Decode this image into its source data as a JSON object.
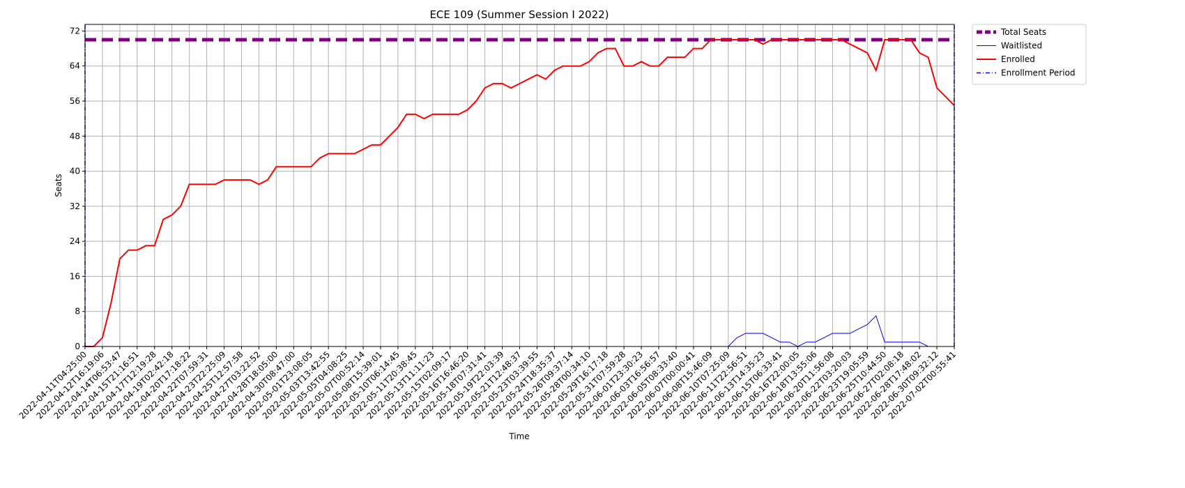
{
  "chart_data": {
    "type": "line",
    "title": "ECE 109 (Summer Session I 2022)",
    "x_label": "Time",
    "y_label": "Seats",
    "categories": [
      "2022-04-11T04:25:00",
      null,
      "2022-04-12T16:19:06",
      null,
      "2022-04-14T06:53:47",
      null,
      "2022-04-15T21:16:51",
      null,
      "2022-04-17T12:19:28",
      null,
      "2022-04-19T02:42:18",
      null,
      "2022-04-20T17:18:22",
      null,
      "2022-04-22T07:59:31",
      null,
      "2022-04-23T22:25:09",
      null,
      "2022-04-25T12:57:58",
      null,
      "2022-04-27T03:22:52",
      null,
      "2022-04-28T18:05:00",
      null,
      "2022-04-30T08:47:00",
      null,
      "2022-05-01T23:08:05",
      null,
      "2022-05-03T13:42:55",
      null,
      "2022-05-05T04:08:25",
      null,
      "2022-05-07T00:52:14",
      null,
      "2022-05-08T15:39:01",
      null,
      "2022-05-10T06:14:45",
      null,
      "2022-05-11T20:38:45",
      null,
      "2022-05-13T11:11:23",
      null,
      "2022-05-15T02:09:17",
      null,
      "2022-05-16T16:46:20",
      null,
      "2022-05-18T07:31:41",
      null,
      "2022-05-19T22:03:39",
      null,
      "2022-05-21T12:48:37",
      null,
      "2022-05-23T03:39:55",
      null,
      "2022-05-24T18:35:37",
      null,
      "2022-05-26T09:37:14",
      null,
      "2022-05-28T00:34:10",
      null,
      "2022-05-29T16:17:18",
      null,
      "2022-05-31T07:59:28",
      null,
      "2022-06-01T23:30:23",
      null,
      "2022-06-03T16:56:57",
      null,
      "2022-06-05T08:33:40",
      null,
      "2022-06-07T00:00:41",
      null,
      "2022-06-08T15:46:09",
      null,
      "2022-06-10T07:25:09",
      null,
      "2022-06-11T22:56:51",
      null,
      "2022-06-13T14:35:23",
      null,
      "2022-06-15T06:33:41",
      null,
      "2022-06-16T22:00:05",
      null,
      "2022-06-18T13:55:06",
      null,
      "2022-06-20T11:56:08",
      null,
      "2022-06-22T03:20:03",
      null,
      "2022-06-23T19:05:59",
      null,
      "2022-06-25T10:44:50",
      null,
      "2022-06-27T02:08:18",
      null,
      "2022-06-28T17:48:02",
      null,
      "2022-06-30T09:32:12",
      null,
      "2022-07-02T00:55:41"
    ],
    "series": [
      {
        "name": "Total Seats",
        "color": "#800080",
        "style": "dashed",
        "hline": 70
      },
      {
        "name": "Waitlisted",
        "color": "#0000ff",
        "style": "solid",
        "values": [
          0,
          0,
          0,
          0,
          0,
          0,
          0,
          0,
          0,
          0,
          0,
          0,
          0,
          0,
          0,
          0,
          0,
          0,
          0,
          0,
          0,
          0,
          0,
          0,
          0,
          0,
          0,
          0,
          0,
          0,
          0,
          0,
          0,
          0,
          0,
          0,
          0,
          0,
          0,
          0,
          0,
          0,
          0,
          0,
          0,
          0,
          0,
          0,
          0,
          0,
          0,
          0,
          0,
          0,
          0,
          0,
          0,
          0,
          0,
          0,
          0,
          0,
          0,
          0,
          0,
          0,
          0,
          0,
          0,
          0,
          0,
          0,
          0,
          0,
          0,
          2,
          3,
          3,
          3,
          2,
          1,
          1,
          0,
          1,
          1,
          2,
          3,
          3,
          3,
          4,
          5,
          7,
          1,
          1,
          1,
          1,
          1,
          0,
          0,
          0,
          0
        ]
      },
      {
        "name": "Enrolled",
        "color": "#ff0000",
        "style": "solid",
        "values": [
          0,
          0,
          2,
          10,
          20,
          22,
          22,
          23,
          23,
          29,
          30,
          32,
          37,
          37,
          37,
          37,
          38,
          38,
          38,
          38,
          37,
          38,
          41,
          41,
          41,
          41,
          41,
          43,
          44,
          44,
          44,
          44,
          45,
          46,
          46,
          48,
          50,
          53,
          53,
          52,
          53,
          53,
          53,
          53,
          54,
          56,
          59,
          60,
          60,
          59,
          60,
          61,
          62,
          61,
          63,
          64,
          64,
          64,
          65,
          67,
          68,
          68,
          64,
          64,
          65,
          64,
          64,
          66,
          66,
          66,
          68,
          68,
          70,
          70,
          70,
          70,
          70,
          70,
          69,
          70,
          70,
          70,
          70,
          70,
          70,
          70,
          70,
          70,
          69,
          68,
          67,
          63,
          70,
          70,
          70,
          70,
          67,
          66,
          59,
          57,
          55
        ]
      },
      {
        "name": "Enrollment Period",
        "color": "#0000ff",
        "style": "dashdot",
        "vlines": [
          "2022-04-11T04:25:00",
          "2022-07-02T00:55:41"
        ]
      }
    ],
    "ylim": [
      0,
      73.5
    ],
    "yticks": [
      0,
      8,
      16,
      24,
      32,
      40,
      48,
      56,
      64,
      72
    ],
    "grid": true,
    "legend": "outside upper right"
  }
}
